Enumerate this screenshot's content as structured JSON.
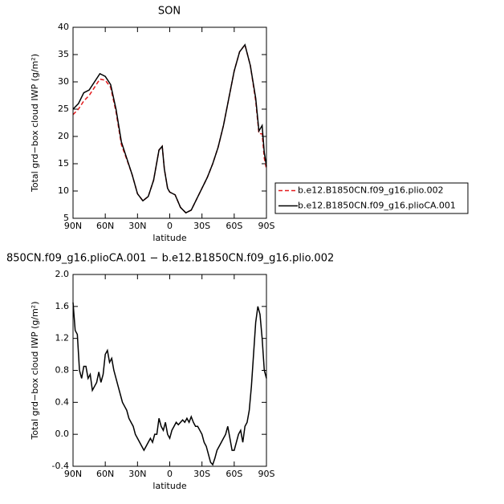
{
  "chart_data": [
    {
      "type": "line",
      "title": "SON",
      "ylabel": "Total grd−box cloud IWP (g/m²)",
      "xlabel": "latitude",
      "x": [
        90,
        85,
        80,
        75,
        70,
        65,
        60,
        55,
        50,
        45,
        40,
        35,
        30,
        25,
        20,
        15,
        10,
        7,
        5,
        2,
        0,
        -5,
        -10,
        -15,
        -20,
        -25,
        -30,
        -35,
        -40,
        -45,
        -50,
        -55,
        -60,
        -65,
        -70,
        -75,
        -80,
        -83,
        -86,
        -88,
        -90
      ],
      "series": [
        {
          "name": "b.e12.B1850CN.f09_g16.plio.002",
          "color": "#e41a1c",
          "line_style": "dashed",
          "values": [
            24,
            25,
            26.5,
            27.5,
            29,
            30.5,
            30.3,
            29,
            24.5,
            18.5,
            15.8,
            13,
            9.5,
            8.2,
            9,
            12,
            17.5,
            18.2,
            14,
            10.5,
            9.8,
            9.3,
            7,
            6,
            6.5,
            8.5,
            10.5,
            12.5,
            15,
            18,
            22,
            27,
            32,
            35.5,
            36.8,
            33,
            26.5,
            20.5,
            20.5,
            16,
            14
          ]
        },
        {
          "name": "b.e12.B1850CN.f09_g16.plioCA.001",
          "color": "#000000",
          "line_style": "solid",
          "values": [
            25,
            26,
            28,
            28.5,
            30,
            31.5,
            31,
            29.5,
            25,
            19,
            16,
            13,
            9.5,
            8.2,
            9,
            12,
            17.5,
            18.2,
            14,
            10.5,
            9.8,
            9.3,
            7,
            6,
            6.5,
            8.5,
            10.5,
            12.5,
            15,
            18,
            22,
            27,
            32,
            35.5,
            36.8,
            33,
            27,
            21,
            22,
            17,
            14.5
          ]
        }
      ],
      "xlim": [
        90,
        -90
      ],
      "xticks": [
        {
          "value": 90,
          "label": "90N"
        },
        {
          "value": 60,
          "label": "60N"
        },
        {
          "value": 30,
          "label": "30N"
        },
        0,
        {
          "value": -30,
          "label": "30S"
        },
        {
          "value": -60,
          "label": "60S"
        },
        {
          "value": -90,
          "label": "90S"
        }
      ],
      "ylim": [
        5,
        40
      ],
      "yticks": [
        5,
        10,
        15,
        20,
        25,
        30,
        35,
        40
      ]
    },
    {
      "type": "line",
      "title": "850CN.f09_g16.plioCA.001 − b.e12.B1850CN.f09_g16.plio.002",
      "ylabel": "Total grd−box cloud IWP (g/m²)",
      "xlabel": "latitude",
      "x": [
        90,
        88,
        86,
        84,
        82,
        80,
        78,
        76,
        74,
        72,
        70,
        68,
        66,
        64,
        62,
        60,
        58,
        56,
        54,
        52,
        50,
        48,
        46,
        44,
        42,
        40,
        38,
        36,
        34,
        32,
        30,
        28,
        26,
        24,
        22,
        20,
        18,
        16,
        14,
        12,
        10,
        8,
        6,
        4,
        2,
        0,
        -2,
        -4,
        -6,
        -8,
        -10,
        -12,
        -14,
        -16,
        -18,
        -20,
        -22,
        -24,
        -26,
        -28,
        -30,
        -32,
        -34,
        -36,
        -38,
        -40,
        -42,
        -44,
        -46,
        -48,
        -50,
        -52,
        -54,
        -56,
        -58,
        -60,
        -62,
        -64,
        -66,
        -68,
        -70,
        -72,
        -74,
        -76,
        -78,
        -80,
        -82,
        -84,
        -86,
        -88,
        -90
      ],
      "series": [
        {
          "color": "#000000",
          "line_style": "solid",
          "values": [
            1.65,
            1.3,
            1.25,
            0.8,
            0.7,
            0.85,
            0.85,
            0.7,
            0.75,
            0.55,
            0.6,
            0.65,
            0.78,
            0.65,
            0.75,
            1.0,
            1.05,
            0.9,
            0.95,
            0.8,
            0.7,
            0.6,
            0.5,
            0.4,
            0.35,
            0.3,
            0.2,
            0.15,
            0.1,
            0.0,
            -0.05,
            -0.1,
            -0.15,
            -0.2,
            -0.15,
            -0.1,
            -0.05,
            -0.1,
            0.0,
            0.0,
            0.2,
            0.1,
            0.05,
            0.15,
            0.0,
            -0.05,
            0.05,
            0.1,
            0.15,
            0.12,
            0.15,
            0.18,
            0.15,
            0.2,
            0.15,
            0.22,
            0.15,
            0.1,
            0.1,
            0.05,
            0.0,
            -0.1,
            -0.15,
            -0.25,
            -0.35,
            -0.38,
            -0.3,
            -0.2,
            -0.15,
            -0.1,
            -0.05,
            0.0,
            0.1,
            -0.05,
            -0.2,
            -0.2,
            -0.1,
            0.0,
            0.05,
            -0.1,
            0.1,
            0.15,
            0.3,
            0.6,
            1.0,
            1.4,
            1.6,
            1.5,
            1.2,
            0.8,
            0.7
          ]
        }
      ],
      "xlim": [
        90,
        -90
      ],
      "xticks": [
        {
          "value": 90,
          "label": "90N"
        },
        {
          "value": 60,
          "label": "60N"
        },
        {
          "value": 30,
          "label": "30N"
        },
        0,
        {
          "value": -30,
          "label": "30S"
        },
        {
          "value": -60,
          "label": "60S"
        },
        {
          "value": -90,
          "label": "90S"
        }
      ],
      "ylim": [
        -0.4,
        2.0
      ],
      "yticks": [
        -0.4,
        {
          "value": 0,
          "label": "0.0"
        },
        0.4,
        0.8,
        1.2,
        1.6,
        {
          "value": 2,
          "label": "2.0"
        }
      ]
    }
  ]
}
